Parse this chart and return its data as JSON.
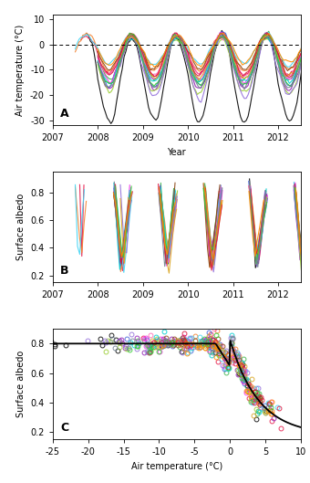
{
  "site_colors": [
    "#000000",
    "#e6194b",
    "#3cb44b",
    "#4363d8",
    "#f58231",
    "#911eb4",
    "#42d4f4",
    "#f032e6",
    "#9acd32",
    "#ff69b4",
    "#00ced1",
    "#9370db",
    "#8b4513",
    "#daa520",
    "#dc143c",
    "#32cd32",
    "#708090",
    "#ff8c00"
  ],
  "panel_a": {
    "ylim": [
      -32,
      12
    ],
    "yticks": [
      -30,
      -20,
      -10,
      0,
      10
    ],
    "ylabel": "Air temperature (°C)",
    "xlabel": "Year",
    "label": "A",
    "dashed_y": 0
  },
  "panel_b": {
    "ylim": [
      0.15,
      0.95
    ],
    "yticks": [
      0.2,
      0.4,
      0.6,
      0.8
    ],
    "ylabel": "Surface albedo",
    "label": "B"
  },
  "panel_c": {
    "xlim": [
      -25,
      10
    ],
    "ylim": [
      0.15,
      0.9
    ],
    "xticks": [
      -25,
      -20,
      -15,
      -10,
      -5,
      0,
      5,
      10
    ],
    "yticks": [
      0.2,
      0.4,
      0.6,
      0.8
    ],
    "xlabel": "Air temperature (°C)",
    "ylabel": "Surface albedo",
    "label": "C"
  },
  "xlim_time": [
    2007.0,
    2012.5
  ],
  "xticks_time": [
    2007,
    2008,
    2009,
    2010,
    2011,
    2012
  ],
  "n_sites": 18,
  "lw": 0.8
}
